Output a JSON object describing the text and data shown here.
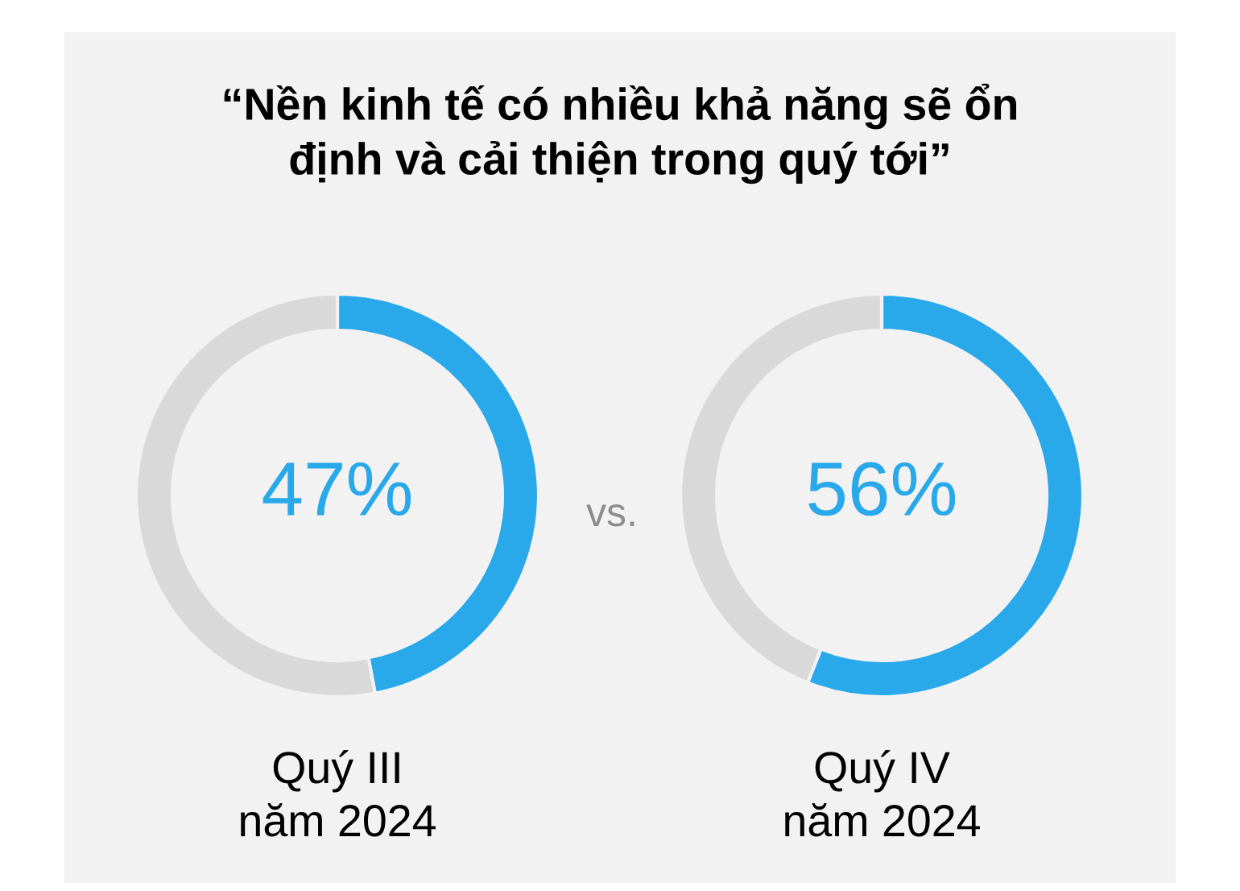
{
  "chart_data": [
    {
      "type": "donut",
      "title": "“Nền kinh tế có nhiều khả năng sẽ ổn\nđịnh và cải thiện trong quý tới”",
      "categories": [
        null,
        null
      ],
      "values": [
        47,
        53
      ],
      "colors": [
        "#29a8ea",
        "#d9d9d9"
      ],
      "value_labels": [
        "47%",
        null
      ],
      "xlabel": "Quý III\nnăm 2024",
      "annotations": [
        "vs."
      ]
    },
    {
      "type": "donut",
      "categories": [
        null,
        null
      ],
      "values": [
        56,
        44
      ],
      "colors": [
        "#29a8ea",
        "#d9d9d9"
      ],
      "value_labels": [
        "56%",
        null
      ],
      "xlabel": "Quý IV\nnăm 2024"
    }
  ]
}
